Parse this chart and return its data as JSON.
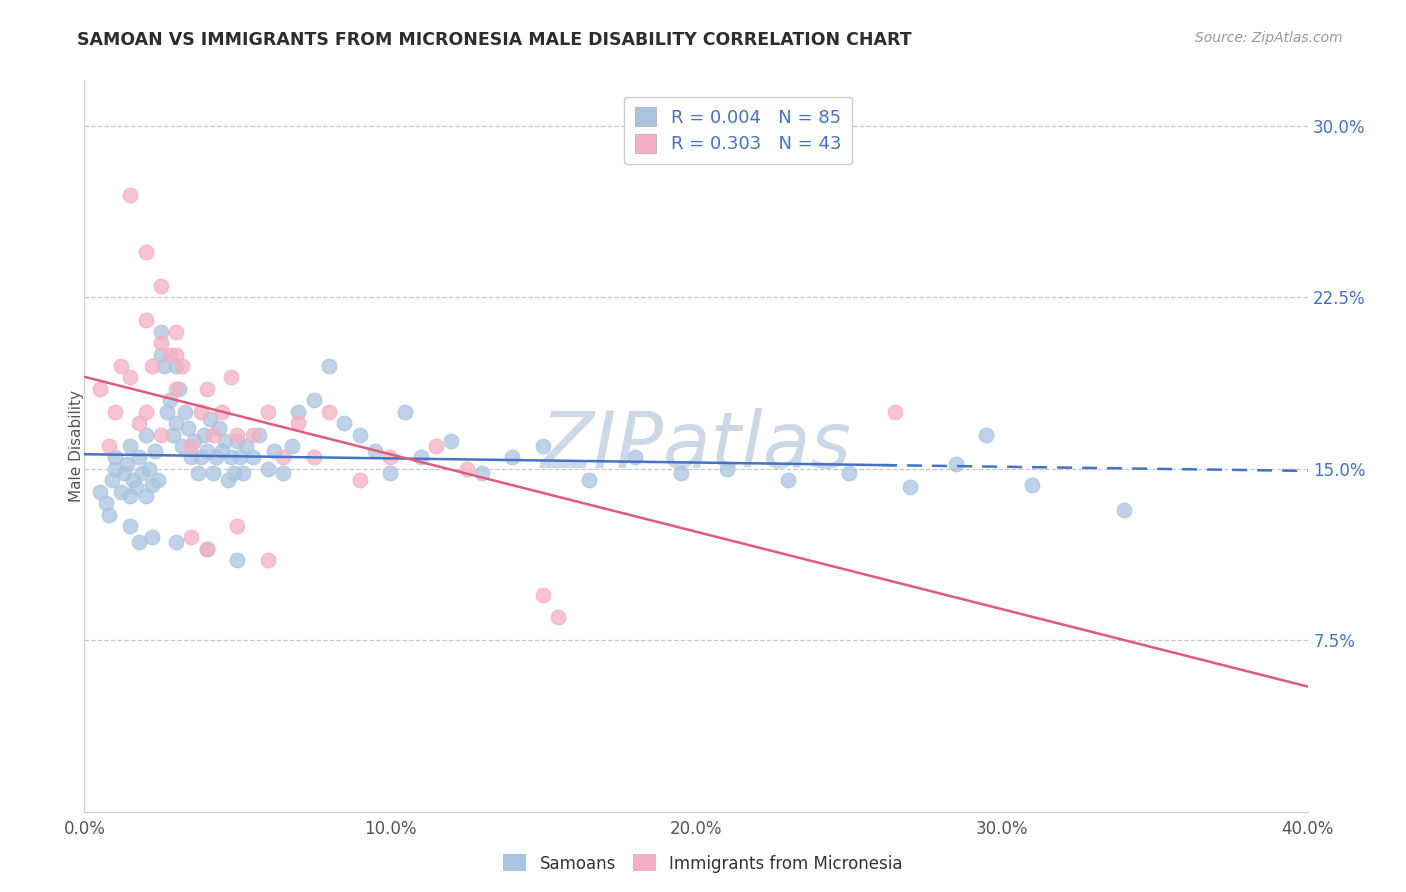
{
  "title": "SAMOAN VS IMMIGRANTS FROM MICRONESIA MALE DISABILITY CORRELATION CHART",
  "source": "Source: ZipAtlas.com",
  "xlabel": "",
  "ylabel": "Male Disability",
  "xlim": [
    0.0,
    0.4
  ],
  "ylim": [
    0.0,
    0.32
  ],
  "xticks": [
    0.0,
    0.1,
    0.2,
    0.3,
    0.4
  ],
  "xtick_labels": [
    "0.0%",
    "10.0%",
    "20.0%",
    "30.0%",
    "40.0%"
  ],
  "yticks": [
    0.075,
    0.15,
    0.225,
    0.3
  ],
  "ytick_labels": [
    "7.5%",
    "15.0%",
    "22.5%",
    "30.0%"
  ],
  "series1_name": "Samoans",
  "series1_color": "#aac4df",
  "series2_name": "Immigrants from Micronesia",
  "series2_color": "#f4afc2",
  "trend1_color": "#4472c4",
  "trend2_color": "#e05a7a",
  "watermark_color": "#ccd8e8",
  "background_color": "#ffffff",
  "grid_color": "#c8c8c8",
  "title_color": "#2d2d2d",
  "legend_text_color": "#4472c4",
  "ytick_color": "#4472c4",
  "xtick_color": "#555555",
  "ylabel_color": "#555555",
  "trend1_solid_end": 0.265,
  "trend2_ystart": 0.11,
  "trend2_yend": 0.27,
  "trend1_yval": 0.143
}
